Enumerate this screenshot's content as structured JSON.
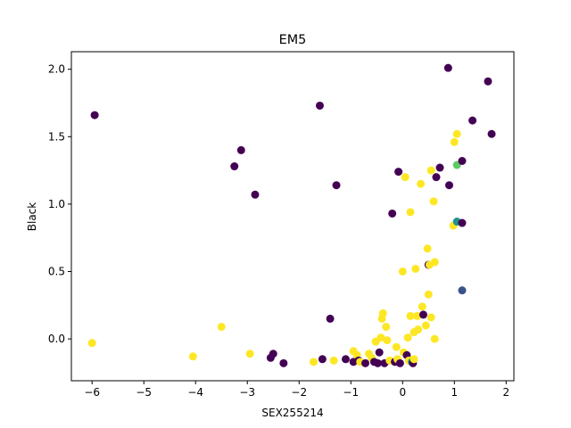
{
  "chart_data": {
    "type": "scatter",
    "title": "EM5",
    "xlabel": "SEX255214",
    "ylabel": "Black",
    "xlim": [
      -6.4,
      2.15
    ],
    "ylim": [
      -0.31,
      2.13
    ],
    "xticks": [
      -6,
      -5,
      -4,
      -3,
      -2,
      -1,
      0,
      1,
      2
    ],
    "xtick_labels": [
      "−6",
      "−5",
      "−4",
      "−3",
      "−2",
      "−1",
      "0",
      "1",
      "2"
    ],
    "yticks": [
      0.0,
      0.5,
      1.0,
      1.5,
      2.0
    ],
    "ytick_labels": [
      "0.0",
      "0.5",
      "1.0",
      "1.5",
      "2.0"
    ],
    "grid": false,
    "colors": {
      "purple": "#440154",
      "blue": "#3b528b",
      "teal": "#21918c",
      "green": "#5ec962",
      "yellow": "#fde725"
    },
    "points": [
      {
        "x": -5.95,
        "y": 1.66,
        "c": "purple"
      },
      {
        "x": -6.0,
        "y": -0.03,
        "c": "yellow"
      },
      {
        "x": -4.05,
        "y": -0.13,
        "c": "yellow"
      },
      {
        "x": -3.5,
        "y": 0.09,
        "c": "yellow"
      },
      {
        "x": -3.25,
        "y": 1.28,
        "c": "purple"
      },
      {
        "x": -3.12,
        "y": 1.4,
        "c": "purple"
      },
      {
        "x": -2.95,
        "y": -0.11,
        "c": "yellow"
      },
      {
        "x": -2.85,
        "y": 1.07,
        "c": "purple"
      },
      {
        "x": -2.55,
        "y": -0.14,
        "c": "purple"
      },
      {
        "x": -2.5,
        "y": -0.11,
        "c": "purple"
      },
      {
        "x": -2.3,
        "y": -0.18,
        "c": "purple"
      },
      {
        "x": -1.72,
        "y": -0.17,
        "c": "yellow"
      },
      {
        "x": -1.6,
        "y": 1.73,
        "c": "purple"
      },
      {
        "x": -1.55,
        "y": -0.15,
        "c": "purple"
      },
      {
        "x": -1.4,
        "y": 0.15,
        "c": "purple"
      },
      {
        "x": -1.33,
        "y": -0.16,
        "c": "yellow"
      },
      {
        "x": -1.28,
        "y": 1.14,
        "c": "purple"
      },
      {
        "x": -1.1,
        "y": -0.15,
        "c": "purple"
      },
      {
        "x": -0.95,
        "y": -0.17,
        "c": "purple"
      },
      {
        "x": -0.95,
        "y": -0.09,
        "c": "yellow"
      },
      {
        "x": -0.88,
        "y": -0.12,
        "c": "yellow"
      },
      {
        "x": -0.85,
        "y": -0.16,
        "c": "purple"
      },
      {
        "x": -0.82,
        "y": -0.17,
        "c": "yellow"
      },
      {
        "x": -0.72,
        "y": -0.18,
        "c": "purple"
      },
      {
        "x": -0.65,
        "y": -0.11,
        "c": "yellow"
      },
      {
        "x": -0.6,
        "y": -0.14,
        "c": "yellow"
      },
      {
        "x": -0.55,
        "y": -0.17,
        "c": "purple"
      },
      {
        "x": -0.52,
        "y": -0.02,
        "c": "yellow"
      },
      {
        "x": -0.48,
        "y": -0.18,
        "c": "purple"
      },
      {
        "x": -0.45,
        "y": -0.1,
        "c": "purple"
      },
      {
        "x": -0.42,
        "y": 0.01,
        "c": "yellow"
      },
      {
        "x": -0.4,
        "y": 0.15,
        "c": "yellow"
      },
      {
        "x": -0.38,
        "y": 0.19,
        "c": "yellow"
      },
      {
        "x": -0.35,
        "y": -0.18,
        "c": "purple"
      },
      {
        "x": -0.32,
        "y": 0.09,
        "c": "yellow"
      },
      {
        "x": -0.3,
        "y": -0.01,
        "c": "yellow"
      },
      {
        "x": -0.25,
        "y": -0.16,
        "c": "yellow"
      },
      {
        "x": -0.2,
        "y": 0.93,
        "c": "purple"
      },
      {
        "x": -0.15,
        "y": -0.17,
        "c": "purple"
      },
      {
        "x": -0.12,
        "y": -0.06,
        "c": "yellow"
      },
      {
        "x": -0.1,
        "y": -0.15,
        "c": "yellow"
      },
      {
        "x": -0.08,
        "y": 1.24,
        "c": "purple"
      },
      {
        "x": -0.05,
        "y": -0.18,
        "c": "purple"
      },
      {
        "x": 0.0,
        "y": 0.5,
        "c": "yellow"
      },
      {
        "x": 0.02,
        "y": -0.1,
        "c": "yellow"
      },
      {
        "x": 0.05,
        "y": 1.2,
        "c": "yellow"
      },
      {
        "x": 0.08,
        "y": -0.12,
        "c": "purple"
      },
      {
        "x": 0.1,
        "y": 0.01,
        "c": "yellow"
      },
      {
        "x": 0.12,
        "y": -0.16,
        "c": "yellow"
      },
      {
        "x": 0.15,
        "y": 0.17,
        "c": "yellow"
      },
      {
        "x": 0.15,
        "y": 0.94,
        "c": "yellow"
      },
      {
        "x": 0.18,
        "y": -0.17,
        "c": "teal"
      },
      {
        "x": 0.2,
        "y": -0.18,
        "c": "purple"
      },
      {
        "x": 0.22,
        "y": -0.15,
        "c": "yellow"
      },
      {
        "x": 0.22,
        "y": 0.05,
        "c": "yellow"
      },
      {
        "x": 0.25,
        "y": 0.52,
        "c": "yellow"
      },
      {
        "x": 0.28,
        "y": 0.17,
        "c": "yellow"
      },
      {
        "x": 0.3,
        "y": 0.07,
        "c": "yellow"
      },
      {
        "x": 0.35,
        "y": 1.15,
        "c": "yellow"
      },
      {
        "x": 0.38,
        "y": 0.24,
        "c": "yellow"
      },
      {
        "x": 0.4,
        "y": 0.18,
        "c": "purple"
      },
      {
        "x": 0.45,
        "y": 0.1,
        "c": "yellow"
      },
      {
        "x": 0.48,
        "y": 0.67,
        "c": "yellow"
      },
      {
        "x": 0.5,
        "y": 0.55,
        "c": "purple"
      },
      {
        "x": 0.5,
        "y": 0.33,
        "c": "yellow"
      },
      {
        "x": 0.52,
        "y": 0.55,
        "c": "yellow"
      },
      {
        "x": 0.55,
        "y": 1.25,
        "c": "yellow"
      },
      {
        "x": 0.55,
        "y": 0.16,
        "c": "yellow"
      },
      {
        "x": 0.6,
        "y": 1.02,
        "c": "yellow"
      },
      {
        "x": 0.62,
        "y": 0.57,
        "c": "yellow"
      },
      {
        "x": 0.62,
        "y": -0.0,
        "c": "yellow"
      },
      {
        "x": 0.65,
        "y": 1.2,
        "c": "purple"
      },
      {
        "x": 0.72,
        "y": 1.27,
        "c": "purple"
      },
      {
        "x": 0.88,
        "y": 2.01,
        "c": "purple"
      },
      {
        "x": 0.9,
        "y": 1.14,
        "c": "purple"
      },
      {
        "x": 0.98,
        "y": 0.84,
        "c": "yellow"
      },
      {
        "x": 1.0,
        "y": 1.46,
        "c": "yellow"
      },
      {
        "x": 1.05,
        "y": 1.52,
        "c": "yellow"
      },
      {
        "x": 1.05,
        "y": 0.87,
        "c": "teal"
      },
      {
        "x": 1.05,
        "y": 1.29,
        "c": "green"
      },
      {
        "x": 1.15,
        "y": 0.86,
        "c": "purple"
      },
      {
        "x": 1.15,
        "y": 1.32,
        "c": "purple"
      },
      {
        "x": 1.15,
        "y": 0.36,
        "c": "blue"
      },
      {
        "x": 1.35,
        "y": 1.62,
        "c": "purple"
      },
      {
        "x": 1.65,
        "y": 1.91,
        "c": "purple"
      },
      {
        "x": 1.72,
        "y": 1.52,
        "c": "purple"
      }
    ]
  }
}
